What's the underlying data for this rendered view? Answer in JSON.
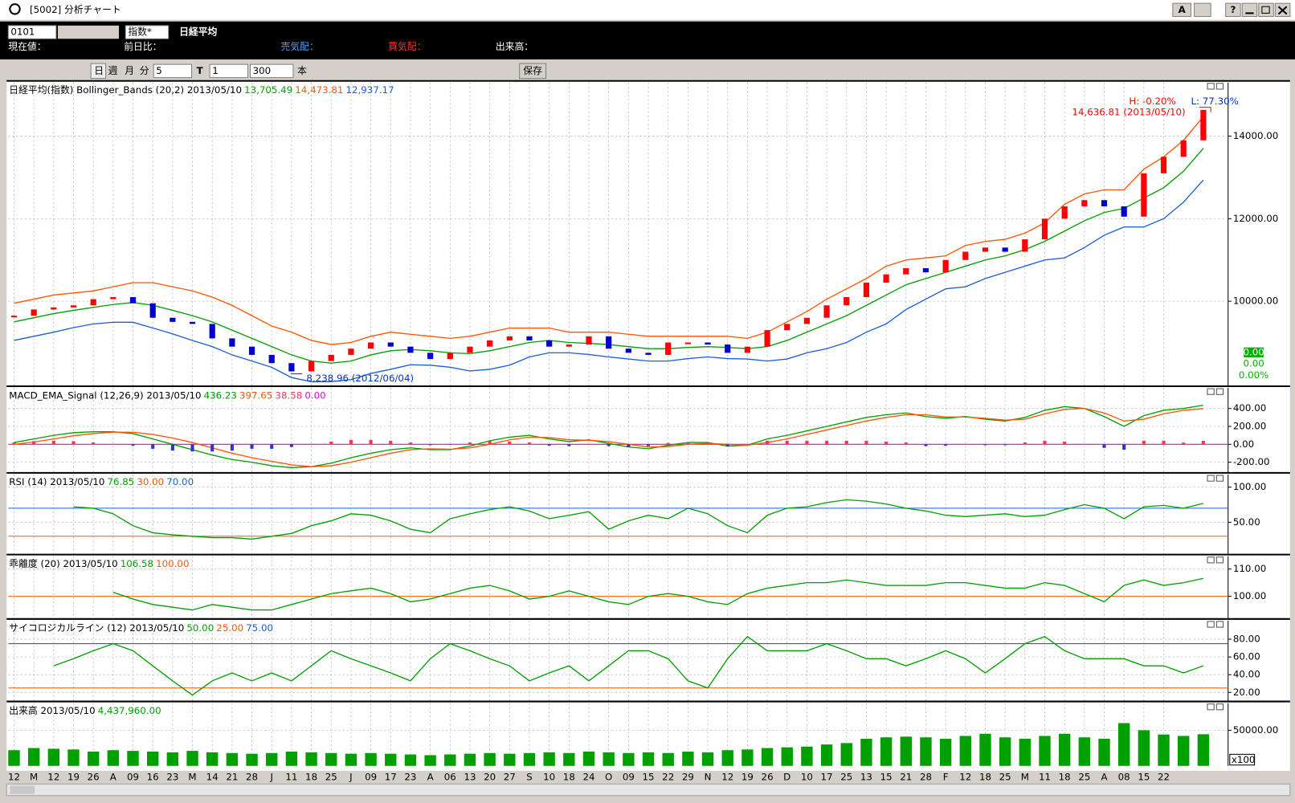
{
  "window": {
    "title": "[5002] 分析チャート",
    "buttons": [
      "A",
      "?"
    ]
  },
  "toolbar": {
    "code": "0101",
    "market": "指数*",
    "name": "日経平均"
  },
  "quote_bar": [
    "現在値：",
    "前日比：",
    "売気配：",
    "買気配：",
    "出来高："
  ],
  "period_bar": {
    "buttons": [
      "日",
      "週",
      "月",
      "分"
    ],
    "minutes": "5",
    "t": "T",
    "count": "1",
    "bars": "300",
    "bars_unit": "本",
    "save": "保存"
  },
  "chart_data": [
    {
      "type": "candlestick",
      "title": "日経平均(指数) Bollinger_Bands (20,2) 2013/05/10",
      "header_values": [
        "13,705.49",
        "14,473.81",
        "12,937.17"
      ],
      "candles": {
        "up_color": "#ff0000",
        "down_color": "#0000cc",
        "values": [
          9650,
          9800,
          9850,
          9900,
          10050,
          10100,
          9950,
          9600,
          9500,
          9450,
          9100,
          8900,
          8700,
          8500,
          8300,
          8550,
          8700,
          8850,
          9000,
          8900,
          8750,
          8600,
          8750,
          8900,
          9050,
          9150,
          9050,
          8900,
          8950,
          9150,
          8850,
          8750,
          8700,
          9000,
          9000,
          8950,
          8750,
          8900,
          9300,
          9450,
          9600,
          9900,
          10100,
          10450,
          10650,
          10800,
          10700,
          11000,
          11200,
          11300,
          11200,
          11500,
          12000,
          12300,
          12450,
          12300,
          12050,
          13100,
          13500,
          13900,
          14636.81
        ]
      },
      "series": [
        {
          "color": "#00a000",
          "values": [
            9500,
            9600,
            9700,
            9780,
            9850,
            9920,
            9970,
            9900,
            9780,
            9650,
            9500,
            9300,
            9100,
            8900,
            8700,
            8550,
            8500,
            8550,
            8700,
            8800,
            8830,
            8800,
            8750,
            8730,
            8800,
            8900,
            9000,
            9050,
            9000,
            8980,
            8950,
            8900,
            8850,
            8850,
            8880,
            8900,
            8880,
            8850,
            8900,
            9050,
            9250,
            9450,
            9650,
            9900,
            10150,
            10400,
            10550,
            10700,
            10850,
            11000,
            11100,
            11250,
            11450,
            11700,
            11950,
            12150,
            12250,
            12500,
            12750,
            13150,
            13705.49
          ]
        },
        {
          "color": "#ff5500",
          "values": [
            9950,
            10050,
            10150,
            10200,
            10250,
            10350,
            10450,
            10450,
            10350,
            10250,
            10100,
            9900,
            9650,
            9400,
            9250,
            9050,
            8950,
            9000,
            9150,
            9250,
            9200,
            9150,
            9100,
            9150,
            9250,
            9350,
            9350,
            9350,
            9250,
            9250,
            9250,
            9200,
            9150,
            9150,
            9150,
            9150,
            9150,
            9100,
            9250,
            9500,
            9750,
            10050,
            10300,
            10550,
            10850,
            11000,
            11050,
            11100,
            11350,
            11450,
            11500,
            11650,
            11900,
            12350,
            12600,
            12700,
            12700,
            13200,
            13500,
            13900,
            14473.81
          ]
        },
        {
          "color": "#1a5fd6",
          "values": [
            9050,
            9150,
            9250,
            9360,
            9450,
            9490,
            9490,
            9350,
            9210,
            9050,
            8900,
            8700,
            8550,
            8400,
            8150,
            8050,
            8050,
            8100,
            8250,
            8350,
            8460,
            8450,
            8400,
            8310,
            8350,
            8450,
            8650,
            8750,
            8750,
            8710,
            8650,
            8600,
            8550,
            8550,
            8610,
            8650,
            8610,
            8600,
            8550,
            8600,
            8750,
            8850,
            9000,
            9250,
            9450,
            9800,
            10050,
            10300,
            10350,
            10550,
            10700,
            10850,
            11000,
            11050,
            11300,
            11600,
            11800,
            11800,
            12000,
            12400,
            12937.17
          ]
        }
      ],
      "ylim": [
        7960,
        15300
      ],
      "yticks": [
        {
          "value": 10000,
          "label": "10000.00"
        },
        {
          "value": 12000,
          "label": "12000.00"
        },
        {
          "value": 14000,
          "label": "14000.00"
        }
      ],
      "grid": true,
      "annotations": [
        {
          "text": "H: -0.20%",
          "color": "#ff0000"
        },
        {
          "text": "L: 77.30%",
          "color": "#0033cc"
        },
        {
          "text": "14,636.81 (2013/05/10)",
          "color": "#ff0000"
        },
        {
          "text": "8,238.96 (2012/06/04)",
          "color": "#0033cc"
        }
      ],
      "side_values": [
        "0.00",
        "0.00",
        "0.00%"
      ]
    },
    {
      "type": "line",
      "title": "MACD_EMA_Signal (12,26,9) 2013/05/10",
      "header_values": [
        "436.23",
        "397.65",
        "38.58",
        "0.00"
      ],
      "series": [
        {
          "color": "#00a000",
          "values": [
            20,
            60,
            100,
            130,
            140,
            140,
            120,
            60,
            0,
            -60,
            -120,
            -170,
            -200,
            -240,
            -260,
            -250,
            -210,
            -150,
            -100,
            -60,
            -40,
            -60,
            -60,
            -20,
            40,
            80,
            100,
            60,
            30,
            50,
            10,
            -30,
            -50,
            -10,
            20,
            20,
            -20,
            -10,
            60,
            100,
            150,
            200,
            250,
            300,
            330,
            350,
            310,
            290,
            310,
            280,
            260,
            300,
            380,
            420,
            400,
            310,
            200,
            320,
            380,
            400,
            436.23
          ]
        },
        {
          "color": "#ff5500",
          "values": [
            0,
            25,
            60,
            95,
            120,
            135,
            135,
            110,
            70,
            20,
            -40,
            -100,
            -150,
            -190,
            -230,
            -250,
            -240,
            -200,
            -150,
            -100,
            -60,
            -50,
            -55,
            -40,
            0,
            50,
            80,
            75,
            50,
            45,
            30,
            0,
            -30,
            -25,
            0,
            10,
            0,
            -10,
            20,
            60,
            110,
            160,
            210,
            260,
            300,
            330,
            330,
            305,
            305,
            290,
            270,
            280,
            340,
            390,
            400,
            350,
            260,
            280,
            340,
            380,
            397.65
          ]
        },
        {
          "color": "#ff3355",
          "down_color": "#3333cc",
          "type": "bar",
          "values": [
            20,
            35,
            40,
            35,
            20,
            5,
            -15,
            -50,
            -70,
            -80,
            -80,
            -70,
            -50,
            -50,
            -30,
            0,
            30,
            50,
            50,
            40,
            20,
            -10,
            -5,
            20,
            40,
            30,
            20,
            -15,
            -20,
            5,
            -20,
            -30,
            -20,
            15,
            20,
            10,
            -20,
            0,
            40,
            40,
            40,
            40,
            40,
            40,
            30,
            20,
            -20,
            -15,
            5,
            -10,
            -10,
            20,
            40,
            30,
            0,
            -40,
            -60,
            40,
            40,
            20,
            38.58
          ]
        }
      ],
      "ref_lines": [
        {
          "value": 0,
          "color": "#ee00ee"
        }
      ],
      "ylim": [
        -310,
        630
      ],
      "yticks": [
        {
          "value": -200,
          "label": "-200.00"
        },
        {
          "value": 0,
          "label": "0.00"
        },
        {
          "value": 200,
          "label": "200.00"
        },
        {
          "value": 400,
          "label": "400.00"
        }
      ],
      "grid": true
    },
    {
      "type": "line",
      "title": "RSI (14) 2013/05/10",
      "header_values": [
        "76.85",
        "30.00",
        "70.00"
      ],
      "series": [
        {
          "color": "#00a000",
          "values": [
            null,
            null,
            null,
            72,
            70,
            62,
            45,
            35,
            32,
            30,
            28,
            28,
            26,
            30,
            34,
            45,
            52,
            62,
            60,
            52,
            40,
            35,
            55,
            62,
            68,
            72,
            66,
            55,
            60,
            65,
            40,
            52,
            60,
            55,
            70,
            62,
            45,
            35,
            60,
            70,
            72,
            78,
            82,
            80,
            76,
            70,
            66,
            60,
            58,
            60,
            62,
            58,
            60,
            68,
            75,
            70,
            55,
            72,
            74,
            70,
            76.85
          ]
        }
      ],
      "ref_lines": [
        {
          "value": 30,
          "color": "#ff5500"
        },
        {
          "value": 70,
          "color": "#1a5fd6"
        }
      ],
      "ylim": [
        5,
        118
      ],
      "yticks": [
        {
          "value": 50,
          "label": "50.00"
        },
        {
          "value": 100,
          "label": "100.00"
        }
      ],
      "grid": true
    },
    {
      "type": "line",
      "title": "乖離度 (20) 2013/05/10",
      "header_values": [
        "106.58",
        "100.00"
      ],
      "series": [
        {
          "color": "#00a000",
          "values": [
            null,
            null,
            null,
            null,
            null,
            101.5,
            99,
            97,
            96,
            95,
            97,
            96,
            95,
            95,
            97,
            99,
            101,
            102,
            103,
            101,
            98,
            99,
            101,
            103,
            104,
            102,
            99,
            100,
            102,
            100,
            98,
            97,
            100,
            101,
            100,
            98,
            97,
            101,
            103,
            104,
            105,
            105,
            106,
            105,
            104,
            104,
            104,
            105,
            105,
            104,
            103,
            103,
            105,
            104,
            101,
            98,
            104,
            106,
            104,
            105,
            106.58
          ]
        }
      ],
      "ref_lines": [
        {
          "value": 100,
          "color": "#ff5500"
        }
      ],
      "ylim": [
        92,
        114.7
      ],
      "yticks": [
        {
          "value": 100,
          "label": "100.00"
        },
        {
          "value": 110,
          "label": "110.00"
        }
      ],
      "grid": true
    },
    {
      "type": "line",
      "title": "サイコロジカルライン (12) 2013/05/10",
      "header_values": [
        "50.00",
        "25.00",
        "75.00"
      ],
      "series": [
        {
          "color": "#00a000",
          "values": [
            null,
            null,
            50,
            58,
            67,
            75,
            67,
            50,
            33,
            17,
            33,
            42,
            33,
            42,
            33,
            50,
            67,
            58,
            50,
            42,
            33,
            58,
            75,
            67,
            58,
            50,
            33,
            42,
            50,
            33,
            50,
            67,
            67,
            58,
            33,
            25,
            58,
            83,
            67,
            67,
            67,
            75,
            67,
            58,
            58,
            50,
            58,
            67,
            58,
            42,
            58,
            75,
            83,
            67,
            58,
            58,
            58,
            50,
            50,
            42,
            50
          ]
        }
      ],
      "ref_lines": [
        {
          "value": 25,
          "color": "#ff5500"
        },
        {
          "value": 75,
          "color": "#1a5fd6"
        }
      ],
      "ylim": [
        10.7,
        101
      ],
      "yticks": [
        {
          "value": 20,
          "label": "20.00"
        },
        {
          "value": 40,
          "label": "40.00"
        },
        {
          "value": 60,
          "label": "60.00"
        },
        {
          "value": 80,
          "label": "80.00"
        }
      ],
      "grid": true
    },
    {
      "type": "bar",
      "title": "出来高 2013/05/10",
      "header_values": [
        "4,437,960.00"
      ],
      "unit": "x100",
      "series": [
        {
          "color": "#00a000",
          "values": [
            22000,
            25000,
            24000,
            23000,
            20000,
            22000,
            21000,
            20000,
            19000,
            21000,
            19000,
            18000,
            17000,
            18000,
            20000,
            19000,
            18000,
            17000,
            18000,
            17000,
            16000,
            15000,
            16000,
            17000,
            18000,
            17000,
            18000,
            19000,
            18000,
            20000,
            19000,
            18000,
            19000,
            18000,
            20000,
            19000,
            22000,
            23000,
            25000,
            26000,
            27000,
            30000,
            32000,
            38000,
            40000,
            41000,
            40000,
            38000,
            42000,
            45000,
            40000,
            38000,
            42000,
            45000,
            40000,
            38000,
            60000,
            50000,
            44000,
            42000,
            44379.6
          ]
        }
      ],
      "ylim": [
        0,
        88000
      ],
      "yticks": [
        {
          "value": 50000,
          "label": "50000.00"
        }
      ],
      "grid": true,
      "categories": [
        "12",
        "M",
        "12",
        "19",
        "26",
        "A",
        "09",
        "16",
        "23",
        "M",
        "14",
        "21",
        "28",
        "J",
        "11",
        "18",
        "25",
        "J",
        "09",
        "17",
        "23",
        "A",
        "06",
        "13",
        "20",
        "27",
        "S",
        "10",
        "18",
        "24",
        "O",
        "09",
        "15",
        "22",
        "29",
        "N",
        "12",
        "19",
        "26",
        "D",
        "10",
        "17",
        "25",
        "13",
        "15",
        "21",
        "28",
        "F",
        "12",
        "18",
        "25",
        "M",
        "11",
        "18",
        "25",
        "A",
        "08",
        "15",
        "22",
        null,
        null
      ]
    }
  ]
}
